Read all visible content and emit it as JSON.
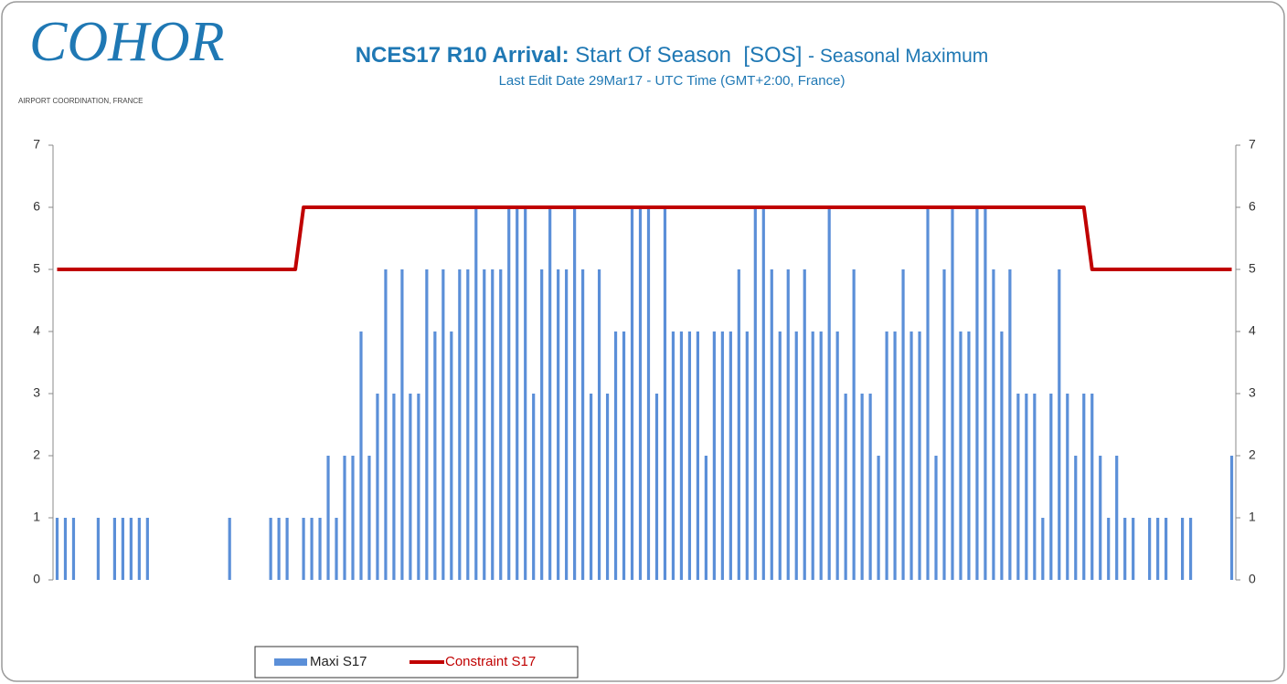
{
  "logo": {
    "name": "COHOR",
    "tagline": "AIRPORT COORDINATION, FRANCE"
  },
  "chart_data": {
    "type": "bar",
    "title_bold": "NCES17 R10 Arrival:",
    "title": "Start Of Season  [SOS]",
    "title_suffix": "- Seasonal Maximum",
    "subtitle": "Last Edit Date 29Mar17 - UTC Time (GMT+2:00, France)",
    "ylim": [
      0,
      7
    ],
    "yticks": [
      0,
      1,
      2,
      3,
      4,
      5,
      6,
      7
    ],
    "y2lim": [
      0,
      7
    ],
    "y2ticks": [
      0,
      1,
      2,
      3,
      4,
      5,
      6,
      7
    ],
    "legend": "bottom",
    "series": [
      {
        "name": "Maxi S17",
        "type": "bar",
        "color": "#5b8fd8",
        "values": [
          1,
          1,
          1,
          0,
          0,
          1,
          0,
          1,
          1,
          1,
          1,
          1,
          0,
          0,
          0,
          0,
          0,
          0,
          0,
          0,
          0,
          1,
          0,
          0,
          0,
          0,
          1,
          1,
          1,
          0,
          1,
          1,
          1,
          2,
          1,
          2,
          2,
          4,
          2,
          3,
          5,
          3,
          5,
          3,
          3,
          5,
          4,
          5,
          4,
          5,
          5,
          6,
          5,
          5,
          5,
          6,
          6,
          6,
          3,
          5,
          6,
          5,
          5,
          6,
          5,
          3,
          5,
          3,
          4,
          4,
          6,
          6,
          6,
          3,
          6,
          4,
          4,
          4,
          4,
          2,
          4,
          4,
          4,
          5,
          4,
          6,
          6,
          5,
          4,
          5,
          4,
          5,
          4,
          4,
          6,
          4,
          3,
          5,
          3,
          3,
          2,
          4,
          4,
          5,
          4,
          4,
          6,
          2,
          5,
          6,
          4,
          4,
          6,
          6,
          5,
          4,
          5,
          3,
          3,
          3,
          1,
          3,
          5,
          3,
          2,
          3,
          3,
          2,
          1,
          2,
          1,
          1,
          0,
          1,
          1,
          1,
          0,
          1,
          1,
          0,
          0,
          0,
          0,
          2
        ]
      },
      {
        "name": "Constraint S17",
        "type": "line",
        "color": "#c00000",
        "values": [
          5,
          5,
          5,
          5,
          5,
          5,
          5,
          5,
          5,
          5,
          5,
          5,
          5,
          5,
          5,
          5,
          5,
          5,
          5,
          5,
          5,
          5,
          5,
          5,
          5,
          5,
          5,
          5,
          5,
          5,
          6,
          6,
          6,
          6,
          6,
          6,
          6,
          6,
          6,
          6,
          6,
          6,
          6,
          6,
          6,
          6,
          6,
          6,
          6,
          6,
          6,
          6,
          6,
          6,
          6,
          6,
          6,
          6,
          6,
          6,
          6,
          6,
          6,
          6,
          6,
          6,
          6,
          6,
          6,
          6,
          6,
          6,
          6,
          6,
          6,
          6,
          6,
          6,
          6,
          6,
          6,
          6,
          6,
          6,
          6,
          6,
          6,
          6,
          6,
          6,
          6,
          6,
          6,
          6,
          6,
          6,
          6,
          6,
          6,
          6,
          6,
          6,
          6,
          6,
          6,
          6,
          6,
          6,
          6,
          6,
          6,
          6,
          6,
          6,
          6,
          6,
          6,
          6,
          6,
          6,
          6,
          6,
          6,
          6,
          6,
          6,
          5,
          5,
          5,
          5,
          5,
          5,
          5,
          5,
          5,
          5,
          5,
          5,
          5,
          5,
          5,
          5,
          5,
          5
        ]
      }
    ]
  }
}
